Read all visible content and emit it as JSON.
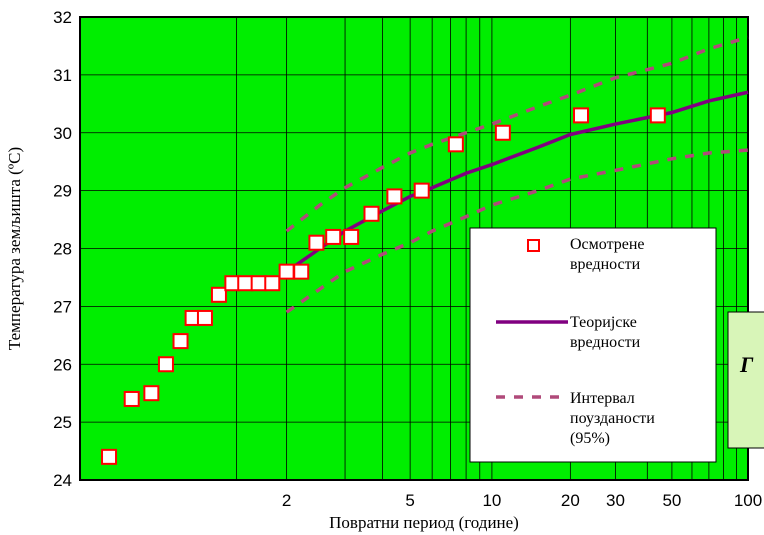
{
  "chart_data": {
    "type": "scatter",
    "xlabel": "Повратни период  (године)",
    "ylabel": "Температура земљишта (ºC)",
    "x_scale": "gumbel",
    "xlim": [
      1.01,
      100
    ],
    "ylim": [
      24,
      32
    ],
    "x_ticks": [
      2,
      5,
      10,
      20,
      30,
      50,
      100
    ],
    "x_tick_labels": [
      "2",
      "5",
      "10",
      "20",
      "30",
      "50",
      "100"
    ],
    "y_ticks": [
      24,
      25,
      26,
      27,
      28,
      29,
      30,
      31,
      32
    ],
    "y_tick_labels": [
      "24",
      "25",
      "26",
      "27",
      "28",
      "29",
      "30",
      "31",
      "32"
    ],
    "grid": true,
    "background_color": "#00ee00",
    "series": [
      {
        "name": "Осмотрене вредности",
        "kind": "markers",
        "color": "#ff0000",
        "x": [
          1.03,
          1.06,
          1.1,
          1.14,
          1.19,
          1.24,
          1.3,
          1.38,
          1.47,
          1.57,
          1.69,
          1.83,
          2.0,
          2.2,
          2.44,
          2.75,
          3.14,
          3.67,
          4.4,
          5.5,
          7.33,
          11.0,
          22.0,
          44.0
        ],
        "y": [
          24.4,
          25.4,
          25.5,
          26.0,
          26.4,
          26.8,
          26.8,
          27.2,
          27.4,
          27.4,
          27.4,
          27.4,
          27.6,
          27.6,
          28.1,
          28.2,
          28.2,
          28.6,
          28.9,
          29.0,
          29.8,
          30.0,
          30.3,
          30.3
        ]
      },
      {
        "name": "Теоријске вредности",
        "kind": "line",
        "color": "#800080",
        "x": [
          2,
          2.5,
          3,
          4,
          5,
          6,
          8,
          10,
          15,
          20,
          30,
          50,
          70,
          100
        ],
        "y": [
          27.6,
          28.0,
          28.3,
          28.65,
          28.9,
          29.05,
          29.3,
          29.45,
          29.75,
          29.97,
          30.15,
          30.35,
          30.55,
          30.7
        ]
      },
      {
        "name": "Интервал поузданости (95%)",
        "kind": "dashed",
        "color": "#b04a7a",
        "upper_x": [
          2,
          2.5,
          3,
          4,
          5,
          6,
          8,
          10,
          15,
          20,
          30,
          50,
          70,
          100
        ],
        "upper_y": [
          28.3,
          28.75,
          29.05,
          29.4,
          29.65,
          29.8,
          30.0,
          30.15,
          30.45,
          30.65,
          30.95,
          31.2,
          31.45,
          31.65
        ],
        "lower_x": [
          2,
          2.5,
          3,
          4,
          5,
          6,
          8,
          10,
          15,
          20,
          30,
          50,
          70,
          100
        ],
        "lower_y": [
          26.9,
          27.3,
          27.6,
          27.9,
          28.1,
          28.3,
          28.55,
          28.75,
          29.0,
          29.2,
          29.35,
          29.55,
          29.65,
          29.7
        ]
      }
    ],
    "legend": {
      "placement": "right",
      "entries": [
        [
          "Осмотрене",
          "вредности"
        ],
        [
          "Теоријске",
          "вредности"
        ],
        [
          "Интервал",
          "поузданости",
          "(95%)"
        ]
      ]
    },
    "overlay_box": {
      "text": "Г",
      "color": "#d8f5b8"
    }
  }
}
